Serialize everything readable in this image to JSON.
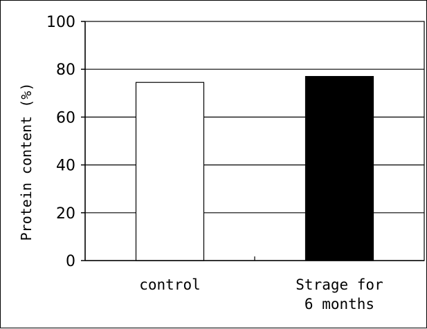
{
  "chart_data": {
    "type": "bar",
    "categories": [
      "control",
      "Strage for\n6 months"
    ],
    "values": [
      74.5,
      77
    ],
    "bar_colors": [
      "#ffffff",
      "#000000"
    ],
    "title": "",
    "xlabel": "",
    "ylabel": "Protein content (%)",
    "ylim": [
      0,
      100
    ],
    "yticks": [
      "0",
      "20",
      "40",
      "60",
      "80",
      "100"
    ],
    "grid": "horizontal",
    "legend": "none"
  }
}
